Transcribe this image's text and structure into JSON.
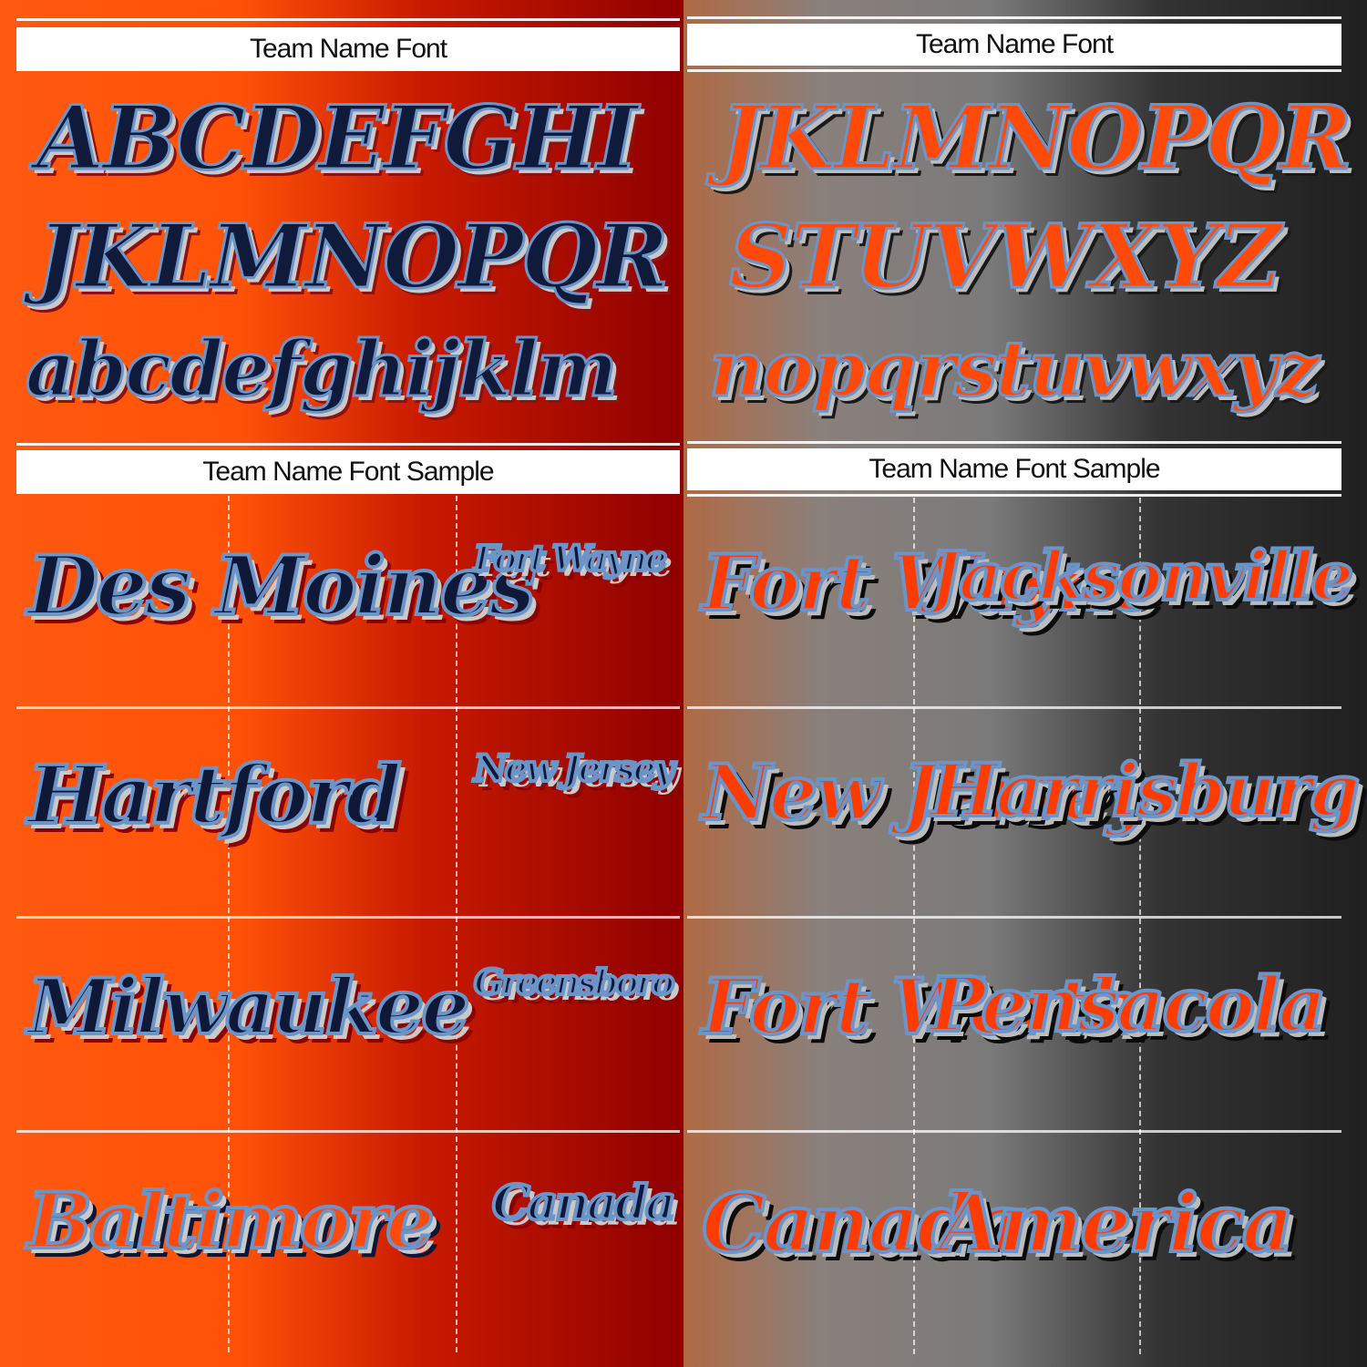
{
  "panels": {
    "top_left": {
      "label": "Team Name Font",
      "row1": "ABCDEFGHI",
      "row2": "JKLMNOPQR",
      "row3": "abcdefghijklm"
    },
    "top_right": {
      "label": "Team Name Font",
      "row1": "JKLMNOPQR",
      "row2": "STUVWXYZ",
      "row3": "nopqrstuvwxyz"
    },
    "bottom_left": {
      "label": "Team Name Font Sample",
      "cities": [
        "Des Moines",
        "Fort Wayne",
        "Hartford",
        "New Jersey",
        "Milwaukee",
        "Greensboro",
        "Baltimore",
        "Canada"
      ]
    },
    "bottom_right": {
      "label": "Team Name Font Sample",
      "cities": [
        "Fort Wayne",
        "Jacksonville",
        "New Jersey",
        "Harrisburg",
        "Fort Worth",
        "Pensacola",
        "Canada",
        "America"
      ]
    }
  },
  "colors": {
    "orange": "#ff5a10",
    "dark_red": "#8e0000",
    "gray": "#7a7a7a",
    "black": "#1f1f1f",
    "navy": "#101a3a",
    "light_blue": "#6b95c9"
  }
}
